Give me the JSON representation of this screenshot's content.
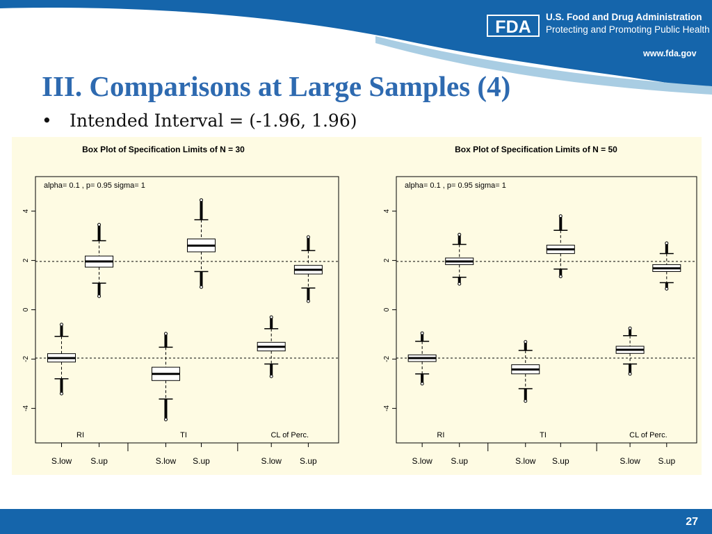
{
  "header": {
    "agency": "U.S. Food and Drug Administration",
    "tagline": "Protecting and Promoting Public Health",
    "url": "www.fda.gov",
    "logo_text": "FDA",
    "colors": {
      "band": "#1565ab",
      "band_light": "#a9cde3",
      "title": "#2e6ab0"
    }
  },
  "slide": {
    "title": "III. Comparisons at Large Samples (4)",
    "bullet_symbol": "•",
    "bullet": "Intended Interval = (-1.96, 1.96)",
    "page_number": "27"
  },
  "chart_data": [
    {
      "type": "box",
      "title": "Box Plot of Specification Limits of N =  30",
      "annotation": "alpha= 0.1 , p= 0.95 sigma= 1",
      "ylim": [
        -5.4,
        5.4
      ],
      "yticks": [
        -4,
        -2,
        0,
        2,
        4
      ],
      "ytick_labels": [
        "-4",
        "-2",
        "0",
        "2",
        "4"
      ],
      "reference_lines": [
        -1.96,
        1.96
      ],
      "categories": [
        "S.low",
        "S.up",
        "S.low",
        "S.up",
        "S.low",
        "S.up"
      ],
      "group_labels": [
        "RI",
        "TI",
        "CL of Perc."
      ],
      "boxes": [
        {
          "label": "S.low",
          "group": "RI",
          "whisker_low": -2.8,
          "q1": -2.12,
          "median": -1.96,
          "q3": -1.78,
          "whisker_high": -1.08,
          "outlier_low": -3.4,
          "outlier_high": -0.6
        },
        {
          "label": "S.up",
          "group": "RI",
          "whisker_low": 1.08,
          "q1": 1.73,
          "median": 1.96,
          "q3": 2.18,
          "whisker_high": 2.8,
          "outlier_low": 0.55,
          "outlier_high": 3.45
        },
        {
          "label": "S.low",
          "group": "TI",
          "whisker_low": -3.62,
          "q1": -2.87,
          "median": -2.6,
          "q3": -2.33,
          "whisker_high": -1.52,
          "outlier_low": -4.45,
          "outlier_high": -0.97
        },
        {
          "label": "S.up",
          "group": "TI",
          "whisker_low": 1.55,
          "q1": 2.35,
          "median": 2.6,
          "q3": 2.87,
          "whisker_high": 3.65,
          "outlier_low": 0.92,
          "outlier_high": 4.45
        },
        {
          "label": "S.low",
          "group": "CL of Perc.",
          "whisker_low": -2.2,
          "q1": -1.67,
          "median": -1.5,
          "q3": -1.32,
          "whisker_high": -0.77,
          "outlier_low": -2.7,
          "outlier_high": -0.3
        },
        {
          "label": "S.up",
          "group": "CL of Perc.",
          "whisker_low": 0.88,
          "q1": 1.45,
          "median": 1.62,
          "q3": 1.8,
          "whisker_high": 2.4,
          "outlier_low": 0.35,
          "outlier_high": 2.95
        }
      ]
    },
    {
      "type": "box",
      "title": "Box Plot of Specification Limits of N =  50",
      "annotation": "alpha= 0.1 , p= 0.95 sigma= 1",
      "ylim": [
        -5.4,
        5.4
      ],
      "yticks": [
        -4,
        -2,
        0,
        2,
        4
      ],
      "ytick_labels": [
        "-4",
        "-2",
        "0",
        "2",
        "4"
      ],
      "reference_lines": [
        -1.96,
        1.96
      ],
      "categories": [
        "S.low",
        "S.up",
        "S.low",
        "S.up",
        "S.low",
        "S.up"
      ],
      "group_labels": [
        "RI",
        "TI",
        "CL of Perc."
      ],
      "boxes": [
        {
          "label": "S.low",
          "group": "RI",
          "whisker_low": -2.6,
          "q1": -2.1,
          "median": -1.96,
          "q3": -1.83,
          "whisker_high": -1.28,
          "outlier_low": -3.0,
          "outlier_high": -0.95
        },
        {
          "label": "S.up",
          "group": "RI",
          "whisker_low": 1.32,
          "q1": 1.83,
          "median": 1.96,
          "q3": 2.1,
          "whisker_high": 2.65,
          "outlier_low": 1.05,
          "outlier_high": 3.05
        },
        {
          "label": "S.low",
          "group": "TI",
          "whisker_low": -3.2,
          "q1": -2.6,
          "median": -2.42,
          "q3": -2.23,
          "whisker_high": -1.65,
          "outlier_low": -3.7,
          "outlier_high": -1.3
        },
        {
          "label": "S.up",
          "group": "TI",
          "whisker_low": 1.65,
          "q1": 2.28,
          "median": 2.45,
          "q3": 2.62,
          "whisker_high": 3.22,
          "outlier_low": 1.35,
          "outlier_high": 3.8
        },
        {
          "label": "S.low",
          "group": "CL of Perc.",
          "whisker_low": -2.2,
          "q1": -1.77,
          "median": -1.62,
          "q3": -1.48,
          "whisker_high": -1.05,
          "outlier_low": -2.6,
          "outlier_high": -0.75
        },
        {
          "label": "S.up",
          "group": "CL of Perc.",
          "whisker_low": 1.1,
          "q1": 1.55,
          "median": 1.68,
          "q3": 1.83,
          "whisker_high": 2.28,
          "outlier_low": 0.85,
          "outlier_high": 2.7
        }
      ]
    }
  ]
}
